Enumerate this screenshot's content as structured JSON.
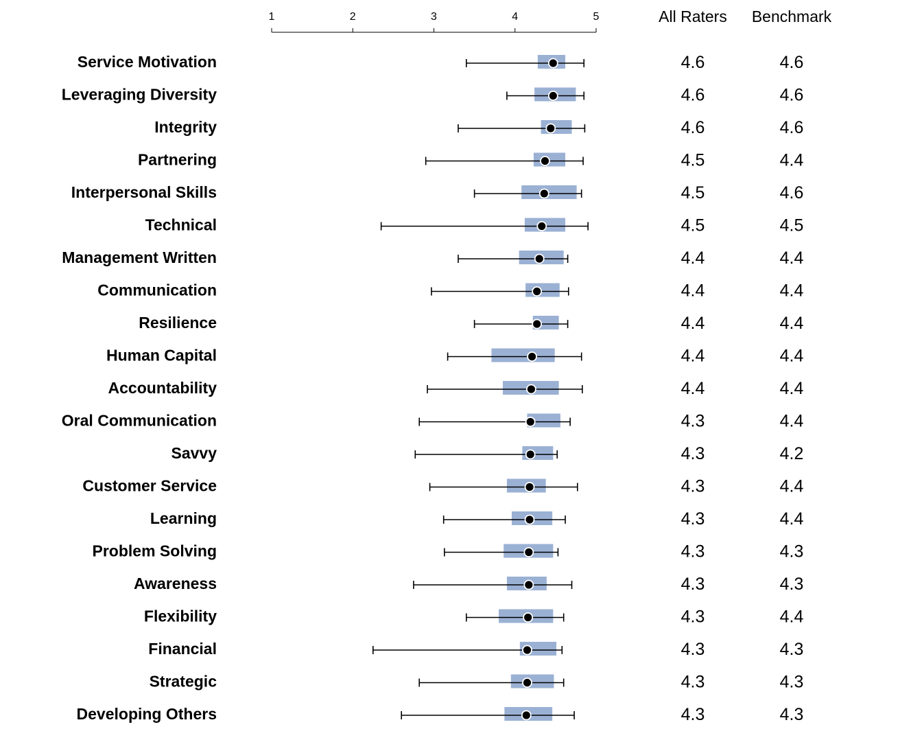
{
  "chart_data": {
    "type": "box",
    "columns": {
      "all_raters": "All Raters",
      "benchmark": "Benchmark"
    },
    "x_axis": {
      "ticks": [
        1,
        2,
        3,
        4,
        5
      ],
      "xlim": [
        1,
        5
      ]
    },
    "colors": {
      "box": "#9bb1d4",
      "point": "#000000",
      "whisker": "#000000",
      "axis": "#000000"
    },
    "rows": [
      {
        "label": "Service Motivation",
        "min": 3.4,
        "q1": 4.28,
        "mean": 4.47,
        "q3": 4.62,
        "max": 4.85,
        "all_raters": "4.6",
        "benchmark": "4.6"
      },
      {
        "label": "Leveraging Diversity",
        "min": 3.9,
        "q1": 4.24,
        "mean": 4.47,
        "q3": 4.75,
        "max": 4.85,
        "all_raters": "4.6",
        "benchmark": "4.6"
      },
      {
        "label": "Integrity",
        "min": 3.3,
        "q1": 4.32,
        "mean": 4.44,
        "q3": 4.7,
        "max": 4.86,
        "all_raters": "4.6",
        "benchmark": "4.6"
      },
      {
        "label": "Partnering",
        "min": 2.9,
        "q1": 4.23,
        "mean": 4.37,
        "q3": 4.62,
        "max": 4.84,
        "all_raters": "4.5",
        "benchmark": "4.4"
      },
      {
        "label": "Interpersonal Skills",
        "min": 3.5,
        "q1": 4.08,
        "mean": 4.36,
        "q3": 4.76,
        "max": 4.82,
        "all_raters": "4.5",
        "benchmark": "4.6"
      },
      {
        "label": "Technical",
        "min": 2.35,
        "q1": 4.12,
        "mean": 4.33,
        "q3": 4.62,
        "max": 4.9,
        "all_raters": "4.5",
        "benchmark": "4.5"
      },
      {
        "label": "Management Written",
        "min": 3.3,
        "q1": 4.05,
        "mean": 4.3,
        "q3": 4.6,
        "max": 4.65,
        "all_raters": "4.4",
        "benchmark": "4.4"
      },
      {
        "label": "Communication",
        "min": 2.97,
        "q1": 4.13,
        "mean": 4.27,
        "q3": 4.55,
        "max": 4.66,
        "all_raters": "4.4",
        "benchmark": "4.4"
      },
      {
        "label": "Resilience",
        "min": 3.5,
        "q1": 4.22,
        "mean": 4.27,
        "q3": 4.54,
        "max": 4.65,
        "all_raters": "4.4",
        "benchmark": "4.4"
      },
      {
        "label": "Human Capital",
        "min": 3.17,
        "q1": 3.71,
        "mean": 4.21,
        "q3": 4.49,
        "max": 4.82,
        "all_raters": "4.4",
        "benchmark": "4.4"
      },
      {
        "label": "Accountability",
        "min": 2.92,
        "q1": 3.85,
        "mean": 4.2,
        "q3": 4.54,
        "max": 4.83,
        "all_raters": "4.4",
        "benchmark": "4.4"
      },
      {
        "label": "Oral Communication",
        "min": 2.82,
        "q1": 4.15,
        "mean": 4.19,
        "q3": 4.56,
        "max": 4.68,
        "all_raters": "4.3",
        "benchmark": "4.4"
      },
      {
        "label": "Savvy",
        "min": 2.77,
        "q1": 4.09,
        "mean": 4.19,
        "q3": 4.47,
        "max": 4.52,
        "all_raters": "4.3",
        "benchmark": "4.2"
      },
      {
        "label": "Customer Service",
        "min": 2.95,
        "q1": 3.9,
        "mean": 4.18,
        "q3": 4.38,
        "max": 4.77,
        "all_raters": "4.3",
        "benchmark": "4.4"
      },
      {
        "label": "Learning",
        "min": 3.12,
        "q1": 3.96,
        "mean": 4.18,
        "q3": 4.46,
        "max": 4.62,
        "all_raters": "4.3",
        "benchmark": "4.4"
      },
      {
        "label": "Problem Solving",
        "min": 3.13,
        "q1": 3.86,
        "mean": 4.17,
        "q3": 4.47,
        "max": 4.53,
        "all_raters": "4.3",
        "benchmark": "4.3"
      },
      {
        "label": "Awareness",
        "min": 2.75,
        "q1": 3.9,
        "mean": 4.17,
        "q3": 4.39,
        "max": 4.7,
        "all_raters": "4.3",
        "benchmark": "4.3"
      },
      {
        "label": "Flexibility",
        "min": 3.4,
        "q1": 3.8,
        "mean": 4.16,
        "q3": 4.47,
        "max": 4.6,
        "all_raters": "4.3",
        "benchmark": "4.4"
      },
      {
        "label": "Financial",
        "min": 2.25,
        "q1": 4.06,
        "mean": 4.15,
        "q3": 4.51,
        "max": 4.58,
        "all_raters": "4.3",
        "benchmark": "4.3"
      },
      {
        "label": "Strategic",
        "min": 2.82,
        "q1": 3.95,
        "mean": 4.15,
        "q3": 4.48,
        "max": 4.6,
        "all_raters": "4.3",
        "benchmark": "4.3"
      },
      {
        "label": "Developing Others",
        "min": 2.6,
        "q1": 3.87,
        "mean": 4.14,
        "q3": 4.46,
        "max": 4.73,
        "all_raters": "4.3",
        "benchmark": "4.3"
      }
    ]
  }
}
